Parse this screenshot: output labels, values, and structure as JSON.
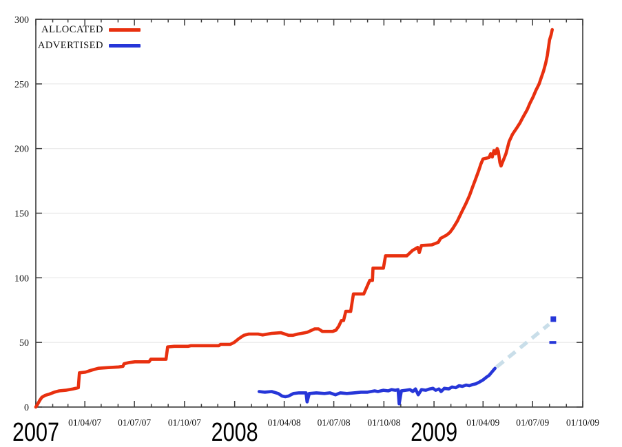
{
  "background": "#ffffff",
  "legend": {
    "items": [
      {
        "label": "ALLOCATED",
        "color": "#e8300f"
      },
      {
        "label": "ADVERTISED",
        "color": "#2636d8"
      }
    ]
  },
  "chart_data": {
    "type": "line",
    "title": "",
    "xlabel": "",
    "ylabel": "",
    "x_axis": {
      "start": "2007-01-01",
      "end": "2009-10-01",
      "minor_tick_interval": "month",
      "major_tick_months": [
        1,
        4,
        7,
        10
      ],
      "quarter_tick_labels": [
        "01/04/07",
        "01/07/07",
        "01/10/07",
        "01/04/08",
        "01/07/08",
        "01/10/08",
        "01/04/09",
        "01/07/09",
        "01/10/09"
      ],
      "year_labels": [
        "2007",
        "2008",
        "2009"
      ]
    },
    "y_axis": {
      "min": 0,
      "max": 300,
      "tick_interval": 50,
      "tick_labels": [
        "0",
        "50",
        "100",
        "150",
        "200",
        "250",
        "300"
      ]
    },
    "grid": {
      "horizontal": true,
      "vertical": false,
      "color": "#e7e7e7"
    },
    "axis_color": "#3a3a3a",
    "series": [
      {
        "name": "ALLOCATED",
        "color": "#e8300f",
        "points": [
          [
            "2007-01-01",
            0
          ],
          [
            "2007-01-04",
            2
          ],
          [
            "2007-01-08",
            5
          ],
          [
            "2007-01-12",
            7.5
          ],
          [
            "2007-01-18",
            9
          ],
          [
            "2007-01-26",
            10
          ],
          [
            "2007-02-04",
            11.5
          ],
          [
            "2007-02-13",
            12.5
          ],
          [
            "2007-02-25",
            13
          ],
          [
            "2007-03-10",
            14
          ],
          [
            "2007-03-20",
            15
          ],
          [
            "2007-03-22",
            26.5
          ],
          [
            "2007-04-02",
            27
          ],
          [
            "2007-04-13",
            28.5
          ],
          [
            "2007-04-26",
            30
          ],
          [
            "2007-05-12",
            30.5
          ],
          [
            "2007-06-02",
            31
          ],
          [
            "2007-06-10",
            31.5
          ],
          [
            "2007-06-12",
            33.5
          ],
          [
            "2007-06-22",
            34.5
          ],
          [
            "2007-07-02",
            35
          ],
          [
            "2007-07-28",
            35
          ],
          [
            "2007-07-31",
            37
          ],
          [
            "2007-08-28",
            37
          ],
          [
            "2007-08-31",
            46.5
          ],
          [
            "2007-09-12",
            47
          ],
          [
            "2007-10-08",
            47
          ],
          [
            "2007-10-13",
            47.5
          ],
          [
            "2007-12-03",
            47.5
          ],
          [
            "2007-12-06",
            48.5
          ],
          [
            "2007-12-24",
            48.5
          ],
          [
            "2007-12-31",
            50
          ],
          [
            "2008-01-09",
            53
          ],
          [
            "2008-01-18",
            55.5
          ],
          [
            "2008-01-27",
            56.5
          ],
          [
            "2008-02-13",
            56.5
          ],
          [
            "2008-02-21",
            55.8
          ],
          [
            "2008-03-09",
            57
          ],
          [
            "2008-03-26",
            57.5
          ],
          [
            "2008-04-09",
            55.5
          ],
          [
            "2008-04-17",
            55.5
          ],
          [
            "2008-04-26",
            56.5
          ],
          [
            "2008-05-09",
            57.5
          ],
          [
            "2008-05-14",
            58
          ],
          [
            "2008-05-27",
            60.5
          ],
          [
            "2008-06-03",
            60.5
          ],
          [
            "2008-06-10",
            58.5
          ],
          [
            "2008-06-29",
            58.5
          ],
          [
            "2008-07-05",
            59.5
          ],
          [
            "2008-07-10",
            62.5
          ],
          [
            "2008-07-15",
            67
          ],
          [
            "2008-07-19",
            67
          ],
          [
            "2008-07-23",
            74
          ],
          [
            "2008-08-01",
            74
          ],
          [
            "2008-08-06",
            87.5
          ],
          [
            "2008-08-25",
            87.5
          ],
          [
            "2008-09-05",
            98
          ],
          [
            "2008-09-10",
            98
          ],
          [
            "2008-09-11",
            107.5
          ],
          [
            "2008-09-30",
            107.5
          ],
          [
            "2008-10-04",
            117
          ],
          [
            "2008-11-12",
            117
          ],
          [
            "2008-11-22",
            121
          ],
          [
            "2008-12-02",
            123.5
          ],
          [
            "2008-12-05",
            119.5
          ],
          [
            "2008-12-09",
            125
          ],
          [
            "2008-12-28",
            125.5
          ],
          [
            "2009-01-09",
            127.5
          ],
          [
            "2009-01-13",
            130.5
          ],
          [
            "2009-01-24",
            133
          ],
          [
            "2009-01-30",
            135
          ],
          [
            "2009-02-05",
            138.5
          ],
          [
            "2009-02-13",
            144
          ],
          [
            "2009-02-21",
            151
          ],
          [
            "2009-02-28",
            157
          ],
          [
            "2009-03-07",
            163.5
          ],
          [
            "2009-03-13",
            170.5
          ],
          [
            "2009-03-18",
            176
          ],
          [
            "2009-03-24",
            183
          ],
          [
            "2009-03-28",
            188
          ],
          [
            "2009-04-01",
            192
          ],
          [
            "2009-04-12",
            193
          ],
          [
            "2009-04-15",
            196
          ],
          [
            "2009-04-18",
            193.5
          ],
          [
            "2009-04-21",
            198.5
          ],
          [
            "2009-04-24",
            196
          ],
          [
            "2009-04-27",
            200
          ],
          [
            "2009-04-29",
            198
          ],
          [
            "2009-05-02",
            189
          ],
          [
            "2009-05-04",
            186.5
          ],
          [
            "2009-05-13",
            196
          ],
          [
            "2009-05-19",
            205.5
          ],
          [
            "2009-05-25",
            211
          ],
          [
            "2009-06-02",
            216
          ],
          [
            "2009-06-08",
            220
          ],
          [
            "2009-06-13",
            224
          ],
          [
            "2009-06-21",
            230
          ],
          [
            "2009-06-26",
            235
          ],
          [
            "2009-07-02",
            240
          ],
          [
            "2009-07-07",
            245
          ],
          [
            "2009-07-13",
            250
          ],
          [
            "2009-07-17",
            255
          ],
          [
            "2009-07-21",
            260
          ],
          [
            "2009-07-25",
            266
          ],
          [
            "2009-07-28",
            272
          ],
          [
            "2009-07-30",
            278
          ],
          [
            "2009-08-01",
            284
          ],
          [
            "2009-08-04",
            288
          ],
          [
            "2009-08-06",
            292
          ]
        ]
      },
      {
        "name": "ADVERTISED",
        "color": "#2636d8",
        "points": [
          [
            "2008-02-15",
            12
          ],
          [
            "2008-02-25",
            11.5
          ],
          [
            "2008-03-09",
            12
          ],
          [
            "2008-03-21",
            10.5
          ],
          [
            "2008-03-28",
            8.5
          ],
          [
            "2008-04-03",
            8
          ],
          [
            "2008-04-09",
            8.5
          ],
          [
            "2008-04-18",
            10.5
          ],
          [
            "2008-04-28",
            11
          ],
          [
            "2008-05-11",
            11
          ],
          [
            "2008-05-13",
            4
          ],
          [
            "2008-05-17",
            10.5
          ],
          [
            "2008-05-30",
            11
          ],
          [
            "2008-06-14",
            10.5
          ],
          [
            "2008-06-24",
            11
          ],
          [
            "2008-07-04",
            9.5
          ],
          [
            "2008-07-13",
            11
          ],
          [
            "2008-07-25",
            10.5
          ],
          [
            "2008-08-07",
            11
          ],
          [
            "2008-08-20",
            11.5
          ],
          [
            "2008-09-01",
            11.5
          ],
          [
            "2008-09-14",
            12.5
          ],
          [
            "2008-09-20",
            12
          ],
          [
            "2008-09-30",
            13
          ],
          [
            "2008-10-09",
            12.5
          ],
          [
            "2008-10-15",
            13.5
          ],
          [
            "2008-10-22",
            13
          ],
          [
            "2008-10-27",
            13.5
          ],
          [
            "2008-10-29",
            2.5
          ],
          [
            "2008-11-02",
            12.5
          ],
          [
            "2008-11-10",
            13
          ],
          [
            "2008-11-18",
            13.5
          ],
          [
            "2008-11-23",
            12
          ],
          [
            "2008-11-28",
            14
          ],
          [
            "2008-12-03",
            9.5
          ],
          [
            "2008-12-09",
            13.5
          ],
          [
            "2008-12-17",
            13
          ],
          [
            "2008-12-24",
            14
          ],
          [
            "2008-12-30",
            14.5
          ],
          [
            "2009-01-04",
            13
          ],
          [
            "2009-01-10",
            14
          ],
          [
            "2009-01-14",
            12
          ],
          [
            "2009-01-20",
            14.5
          ],
          [
            "2009-01-28",
            14
          ],
          [
            "2009-02-03",
            15.5
          ],
          [
            "2009-02-10",
            15
          ],
          [
            "2009-02-16",
            16.5
          ],
          [
            "2009-02-22",
            16
          ],
          [
            "2009-03-01",
            17
          ],
          [
            "2009-03-07",
            16.5
          ],
          [
            "2009-03-13",
            17.5
          ],
          [
            "2009-03-19",
            18
          ],
          [
            "2009-03-26",
            19.5
          ],
          [
            "2009-04-01",
            21
          ],
          [
            "2009-04-07",
            23
          ],
          [
            "2009-04-12",
            24.5
          ],
          [
            "2009-04-16",
            26.5
          ],
          [
            "2009-04-20",
            28.5
          ],
          [
            "2009-04-23",
            30
          ]
        ],
        "projection": {
          "style": "dashed",
          "color": "#c9dee9",
          "points": [
            [
              "2009-04-26",
              31
            ],
            [
              "2009-07-31",
              64
            ]
          ]
        },
        "isolated_markers": [
          {
            "date": "2009-08-08",
            "value": 68,
            "shape": "square"
          },
          {
            "date": "2009-08-07",
            "value": 50,
            "shape": "dash"
          }
        ]
      }
    ]
  }
}
